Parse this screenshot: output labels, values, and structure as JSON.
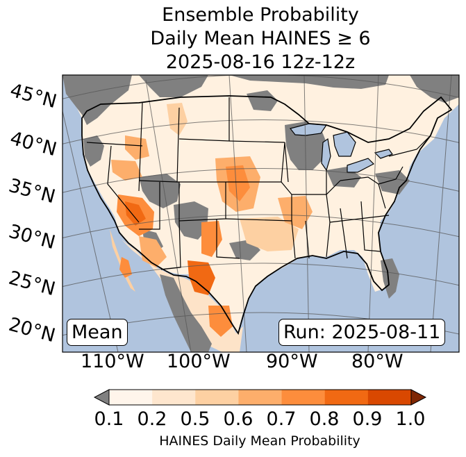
{
  "title": {
    "line1": "Ensemble Probability",
    "line2": "Daily Mean HAINES ≥ 6",
    "line3": "2025-08-16 12z-12z"
  },
  "map": {
    "lat_labels": [
      "45°N",
      "40°N",
      "35°N",
      "30°N",
      "25°N",
      "20°N"
    ],
    "lon_labels": [
      "110°W",
      "100°W",
      "90°W",
      "80°W"
    ],
    "left_box": "Mean",
    "right_box": "Run: 2025-08-11",
    "colors": {
      "ocean": "#b0c4de",
      "missing": "#808080",
      "border": "#000000",
      "grid": "#555555"
    }
  },
  "colorbar": {
    "ticks": [
      "0.1",
      "0.2",
      "0.5",
      "0.6",
      "0.7",
      "0.8",
      "0.9",
      "1.0"
    ],
    "colors": [
      "#fff5eb",
      "#fee6ce",
      "#fdd0a2",
      "#fdae6b",
      "#fd8d3c",
      "#f16913",
      "#d94801",
      "#a63603"
    ],
    "under_color": "#808080",
    "label": "HAINES Daily Mean Probability"
  }
}
